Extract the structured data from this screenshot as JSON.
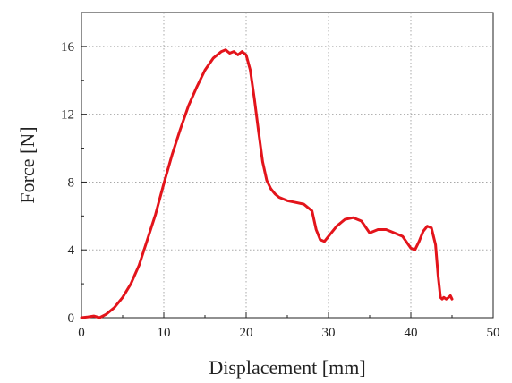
{
  "chart_data": {
    "type": "line",
    "title": "",
    "xlabel": "Displacement [mm]",
    "ylabel": "Force [N]",
    "xlim": [
      0,
      50
    ],
    "ylim": [
      0,
      18
    ],
    "x_ticks": [
      0,
      10,
      20,
      30,
      40,
      50
    ],
    "x_tick_labels": [
      "0",
      "10",
      "20",
      "30",
      "40",
      "50"
    ],
    "y_ticks": [
      0,
      4,
      8,
      12,
      16
    ],
    "y_tick_labels": [
      "0",
      "4",
      "8",
      "12",
      "16"
    ],
    "grid": true,
    "grid_style": "dotted",
    "legend": "none",
    "series": [
      {
        "color": "#e3141b",
        "x": [
          0,
          0.8,
          1.5,
          2.2,
          3.0,
          4.0,
          5.0,
          6.0,
          7.0,
          8.0,
          9.0,
          10.0,
          11.0,
          12.0,
          13.0,
          14.0,
          15.0,
          16.0,
          17.0,
          17.5,
          18.0,
          18.5,
          19.0,
          19.5,
          20.0,
          20.5,
          21.0,
          21.5,
          22.0,
          22.5,
          23.0,
          23.5,
          24.0,
          25.0,
          26.0,
          27.0,
          28.0,
          28.5,
          29.0,
          29.5,
          30.0,
          31.0,
          32.0,
          33.0,
          34.0,
          35.0,
          36.0,
          37.0,
          38.0,
          39.0,
          40.0,
          40.5,
          41.0,
          41.5,
          42.0,
          42.5,
          43.0,
          43.3,
          43.6,
          43.8,
          44.0,
          44.3,
          44.6,
          44.8,
          45.0
        ],
        "y": [
          0.0,
          0.05,
          0.1,
          0.0,
          0.2,
          0.6,
          1.2,
          2.0,
          3.1,
          4.6,
          6.1,
          7.9,
          9.6,
          11.1,
          12.5,
          13.6,
          14.6,
          15.3,
          15.7,
          15.8,
          15.6,
          15.7,
          15.5,
          15.7,
          15.5,
          14.6,
          12.9,
          11.0,
          9.2,
          8.1,
          7.6,
          7.3,
          7.1,
          6.9,
          6.8,
          6.7,
          6.3,
          5.2,
          4.6,
          4.5,
          4.8,
          5.4,
          5.8,
          5.9,
          5.7,
          5.0,
          5.2,
          5.2,
          5.0,
          4.8,
          4.1,
          4.0,
          4.5,
          5.1,
          5.4,
          5.3,
          4.3,
          2.5,
          1.2,
          1.1,
          1.2,
          1.1,
          1.2,
          1.3,
          1.1
        ]
      }
    ]
  }
}
